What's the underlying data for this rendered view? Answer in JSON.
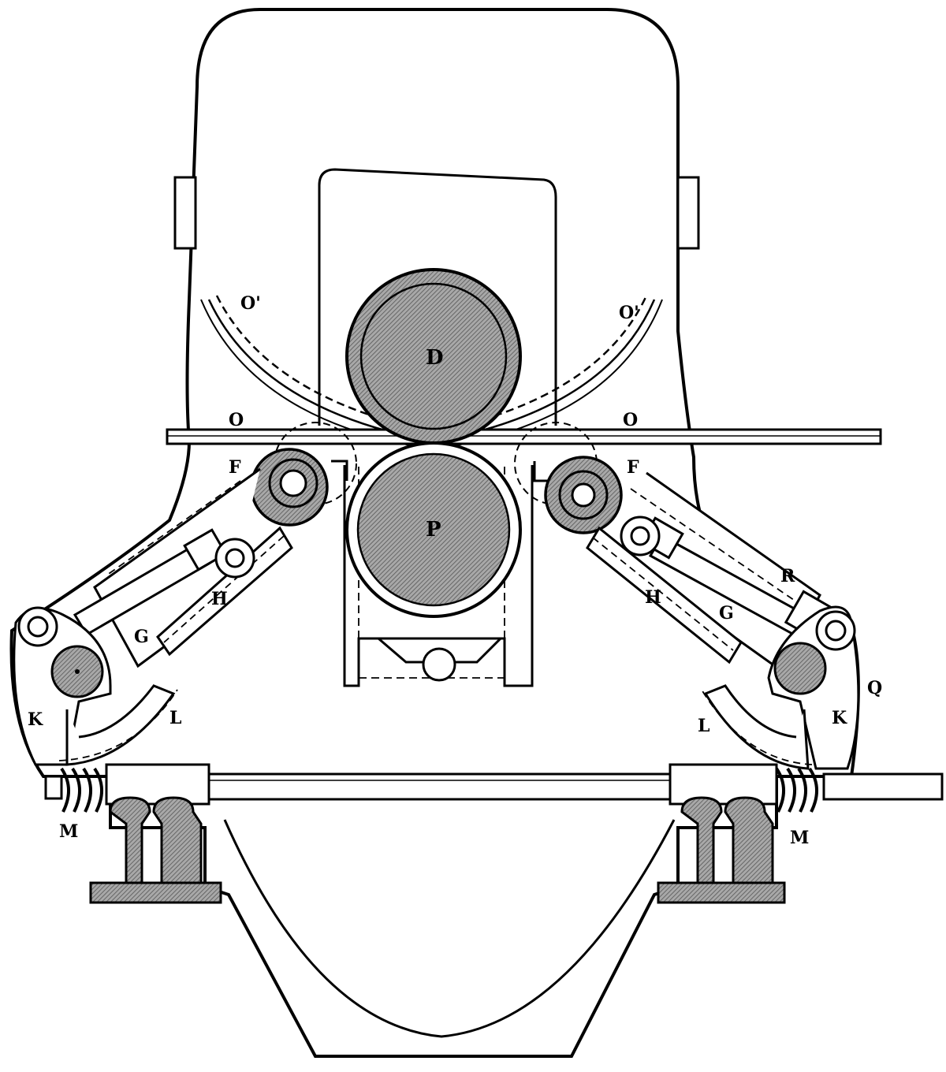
{
  "labels": {
    "D": "D",
    "P": "P",
    "O_left": "O",
    "O_right": "O",
    "O_prime_left": "O'",
    "O_prime_right": "O'",
    "F_left": "F",
    "F_right": "F",
    "H_left": "H",
    "H_right": "H",
    "G_left": "G",
    "G_right": "G",
    "R": "R",
    "K_left": "K",
    "K_right": "K",
    "L_left": "L",
    "L_right": "L",
    "M_left": "M",
    "M_right": "M",
    "Q": "Q"
  },
  "colors": {
    "ink": "#000000",
    "paper": "#ffffff",
    "hatch": "#9a9a9a"
  }
}
